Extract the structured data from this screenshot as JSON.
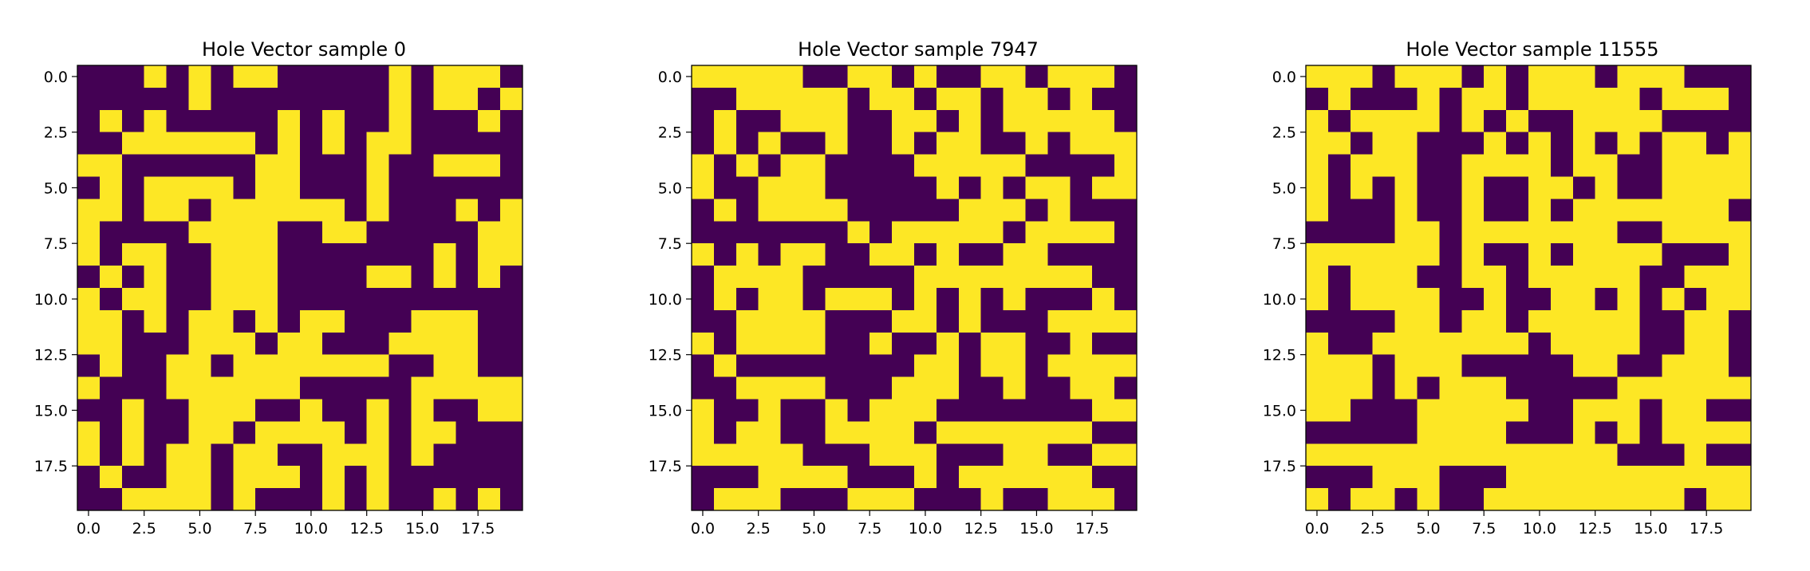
{
  "colors": {
    "filled": "#fde725",
    "empty": "#440154",
    "axis": "#000000",
    "background": "#ffffff"
  },
  "chart_data": [
    {
      "type": "heatmap",
      "title": "Hole Vector sample 0",
      "xlabel": "",
      "ylabel": "",
      "xlim": [
        -0.5,
        19.5
      ],
      "ylim": [
        19.5,
        -0.5
      ],
      "x_ticks": [
        0.0,
        2.5,
        5.0,
        7.5,
        10.0,
        12.5,
        15.0,
        17.5
      ],
      "x_tick_labels": [
        "0.0",
        "2.5",
        "5.0",
        "7.5",
        "10.0",
        "12.5",
        "15.0",
        "17.5"
      ],
      "y_ticks": [
        0.0,
        2.5,
        5.0,
        7.5,
        10.0,
        12.5,
        15.0,
        17.5
      ],
      "y_tick_labels": [
        "0.0",
        "2.5",
        "5.0",
        "7.5",
        "10.0",
        "12.5",
        "15.0",
        "17.5"
      ],
      "grid": false,
      "values": [
        "00010101100000101110",
        "00000100000000101101",
        "01010000010100100010",
        "00111111010101100000",
        "11000000110001001110",
        "01011110110001000000",
        "11011011111101000101",
        "10000111100110000011",
        "10110011100000001011",
        "01010011100001101010",
        "10110011100000000000",
        "11010110101100011100",
        "11000111011000111100",
        "01001101111111001100",
        "10001111110000011111",
        "00100111001001010011",
        "10100110111101011000",
        "10101101100111010000",
        "01001101110101000000",
        "00111101000101001010"
      ]
    },
    {
      "type": "heatmap",
      "title": "Hole Vector sample 7947",
      "xlabel": "",
      "ylabel": "",
      "xlim": [
        -0.5,
        19.5
      ],
      "ylim": [
        19.5,
        -0.5
      ],
      "x_ticks": [
        0.0,
        2.5,
        5.0,
        7.5,
        10.0,
        12.5,
        15.0,
        17.5
      ],
      "x_tick_labels": [
        "0.0",
        "2.5",
        "5.0",
        "7.5",
        "10.0",
        "12.5",
        "15.0",
        "17.5"
      ],
      "y_ticks": [
        0.0,
        2.5,
        5.0,
        7.5,
        10.0,
        12.5,
        15.0,
        17.5
      ],
      "y_tick_labels": [
        "0.0",
        "2.5",
        "5.0",
        "7.5",
        "10.0",
        "12.5",
        "15.0",
        "17.5"
      ],
      "grid": false,
      "values": [
        "11111001101001101110",
        "00111110110110110100",
        "01001110011010111110",
        "01010010010110010111",
        "10101100001111100001",
        "10011100000101011011",
        "01011110000011101000",
        "00000001011111011110",
        "10101100110100110000",
        "01111000001111111100",
        "01011011101010100010",
        "00111100011010001111",
        "10111100100101100100",
        "01000000001101101111",
        "00111100011100100110",
        "10010010111000000011",
        "10110011110111111100",
        "11111000111000110011",
        "00011110001011111100",
        "01110001110001001110"
      ]
    },
    {
      "type": "heatmap",
      "title": "Hole Vector sample 11555",
      "xlabel": "",
      "ylabel": "",
      "xlim": [
        -0.5,
        19.5
      ],
      "ylim": [
        19.5,
        -0.5
      ],
      "x_ticks": [
        0.0,
        2.5,
        5.0,
        7.5,
        10.0,
        12.5,
        15.0,
        17.5
      ],
      "x_tick_labels": [
        "0.0",
        "2.5",
        "5.0",
        "7.5",
        "10.0",
        "12.5",
        "15.0",
        "17.5"
      ],
      "y_ticks": [
        0.0,
        2.5,
        5.0,
        7.5,
        10.0,
        12.5,
        15.0,
        17.5
      ],
      "y_tick_labels": [
        "0.0",
        "2.5",
        "5.0",
        "7.5",
        "10.0",
        "12.5",
        "15.0",
        "17.5"
      ],
      "grid": false,
      "values": [
        "11101110101110111000",
        "01000101101111101110",
        "10111101010011110000",
        "11011000101010101101",
        "10111001111011001111",
        "10101001001101001111",
        "10001001001011111110",
        "00001101111111001111",
        "11111101001011110001",
        "10111001101111100111",
        "10111100100110101011",
        "00001101101111100110",
        "10011111110111100110",
        "11101110000011001110",
        "11101011100000111111",
        "11000111110011101100",
        "00000111100010101111",
        "11111111111111000100",
        "00011100011111111111",
        "10110100111111111011"
      ]
    }
  ]
}
